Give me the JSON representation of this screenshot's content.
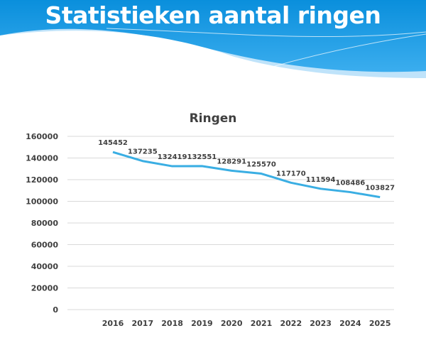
{
  "slide": {
    "title": "Statistieken aantal ringen"
  },
  "colors": {
    "header_blue": "#0a8fdc",
    "line": "#3aaee3",
    "text": "#404040"
  },
  "chart_data": {
    "type": "line",
    "title": "Ringen",
    "categories": [
      "2016",
      "2017",
      "2018",
      "2019",
      "2020",
      "2021",
      "2022",
      "2023",
      "2024",
      "2025"
    ],
    "series": [
      {
        "values": [
          145452,
          137235,
          132419,
          132551,
          128291,
          125570,
          117170,
          111594,
          108486,
          103827
        ]
      }
    ],
    "data_labels": [
      "145452",
      "137235",
      "132419",
      "132551",
      "128291",
      "125570",
      "117170",
      "111594",
      "108486",
      "103827"
    ],
    "ylim": [
      0,
      160000
    ],
    "yticks": [
      "0",
      "20000",
      "40000",
      "60000",
      "80000",
      "100000",
      "120000",
      "140000",
      "160000"
    ],
    "grid": true,
    "legend": "none"
  }
}
